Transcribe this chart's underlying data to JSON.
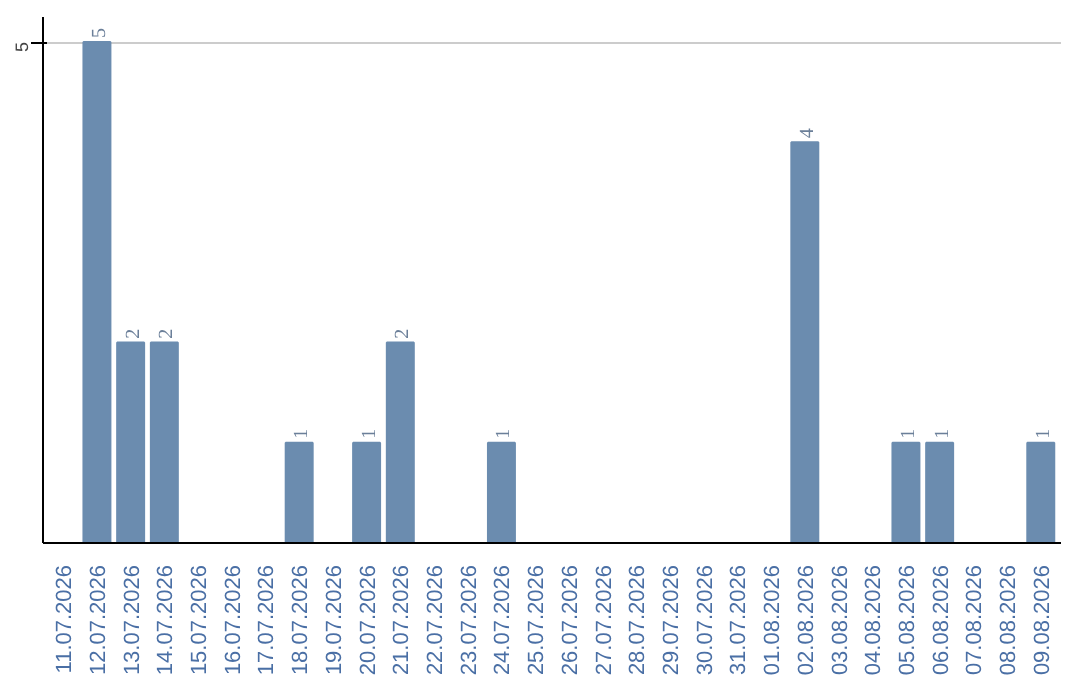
{
  "chart_data": {
    "type": "bar",
    "categories": [
      "11.07.2026",
      "12.07.2026",
      "13.07.2026",
      "14.07.2026",
      "15.07.2026",
      "16.07.2026",
      "17.07.2026",
      "18.07.2026",
      "19.07.2026",
      "20.07.2026",
      "21.07.2026",
      "22.07.2026",
      "23.07.2026",
      "24.07.2026",
      "25.07.2026",
      "26.07.2026",
      "27.07.2026",
      "28.07.2026",
      "29.07.2026",
      "30.07.2026",
      "31.07.2026",
      "01.08.2026",
      "02.08.2026",
      "03.08.2026",
      "04.08.2026",
      "05.08.2026",
      "06.08.2026",
      "07.08.2026",
      "08.08.2026",
      "09.08.2026"
    ],
    "values": [
      0,
      5,
      2,
      2,
      0,
      0,
      0,
      1,
      0,
      1,
      2,
      0,
      0,
      1,
      0,
      0,
      0,
      0,
      0,
      0,
      0,
      0,
      4,
      0,
      0,
      1,
      1,
      0,
      0,
      1
    ],
    "value_labels": [
      null,
      "5",
      "2",
      "2",
      null,
      null,
      null,
      "1",
      null,
      "1",
      "2",
      null,
      null,
      "1",
      null,
      null,
      null,
      null,
      null,
      null,
      null,
      null,
      "4",
      null,
      null,
      "1",
      "1",
      null,
      null,
      "1"
    ],
    "color": "#6b8caf",
    "ylim": [
      0,
      5.25
    ],
    "yticks": [
      5
    ],
    "grid": "y"
  }
}
